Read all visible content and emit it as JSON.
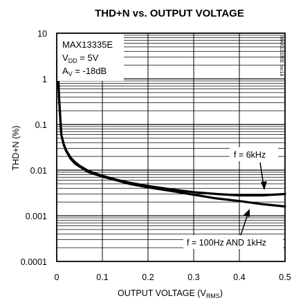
{
  "chart_data": {
    "type": "line",
    "title": "THD+N vs. OUTPUT VOLTAGE",
    "xlabel": {
      "main": "OUTPUT VOLTAGE (V",
      "sub": "RMS",
      "end": ")"
    },
    "ylabel": "THD+N (%)",
    "xlim": [
      0,
      0.5
    ],
    "ylim": [
      0.0001,
      10
    ],
    "yscale": "log",
    "grid": true,
    "x_ticks": [
      "0",
      "0.1",
      "0.2",
      "0.3",
      "0.4",
      "0.5"
    ],
    "y_ticks": [
      "10",
      "1",
      "0.1",
      "0.01",
      "0.001",
      "0.0001"
    ],
    "info_box": {
      "device": "MAX13335E",
      "vdd": {
        "main": "V",
        "sub": "DD",
        "rest": " = 5V"
      },
      "av": {
        "main": "A",
        "sub": "V",
        "rest": " = -18dB"
      }
    },
    "figure_code": "MAX13335E toc18",
    "annotations": [
      {
        "text": "f = 6kHz",
        "series": "f = 6kHz"
      },
      {
        "text": "f = 100Hz AND 1kHz",
        "series": "f = 100Hz AND 1kHz"
      }
    ],
    "series": [
      {
        "name": "f = 6kHz",
        "x": [
          0.002,
          0.005,
          0.01,
          0.015,
          0.02,
          0.03,
          0.04,
          0.05,
          0.07,
          0.1,
          0.13,
          0.16,
          0.2,
          0.25,
          0.3,
          0.35,
          0.4,
          0.45,
          0.5
        ],
        "y": [
          2.5,
          0.4,
          0.06,
          0.038,
          0.028,
          0.019,
          0.015,
          0.0125,
          0.0095,
          0.0075,
          0.0062,
          0.0053,
          0.0045,
          0.0038,
          0.0033,
          0.003,
          0.0028,
          0.0028,
          0.003
        ]
      },
      {
        "name": "f = 100Hz AND 1kHz",
        "x": [
          0.002,
          0.005,
          0.01,
          0.015,
          0.02,
          0.03,
          0.04,
          0.05,
          0.07,
          0.1,
          0.13,
          0.16,
          0.2,
          0.25,
          0.3,
          0.35,
          0.4,
          0.45,
          0.5
        ],
        "y": [
          2.5,
          0.4,
          0.06,
          0.037,
          0.027,
          0.018,
          0.014,
          0.012,
          0.009,
          0.0072,
          0.006,
          0.005,
          0.0042,
          0.0035,
          0.0029,
          0.0024,
          0.0021,
          0.0018,
          0.0016
        ]
      }
    ]
  }
}
